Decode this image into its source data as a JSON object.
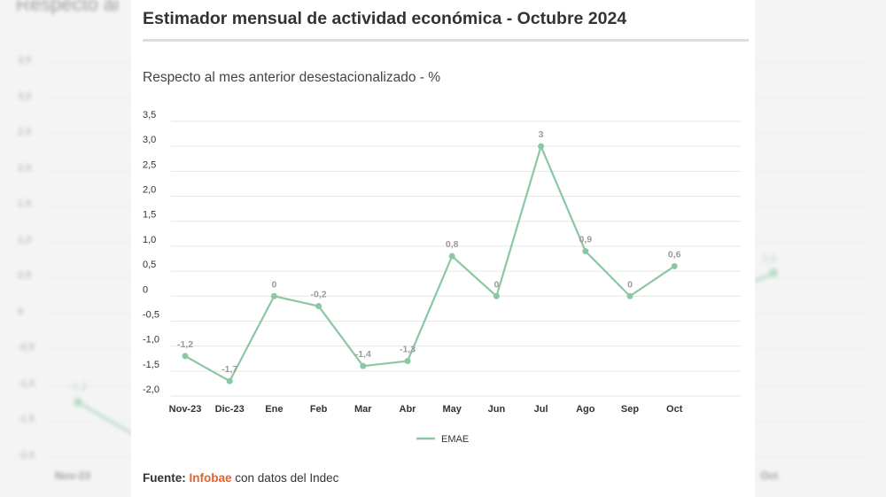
{
  "background": {
    "title_fragment": "Respecto al",
    "ticks": [
      "3,5",
      "3,0",
      "2,5",
      "2,0",
      "1,5",
      "1,0",
      "0,5",
      "0",
      "-0,5",
      "-1,0",
      "-1,5",
      "-2,0"
    ],
    "left_label": "-1,2",
    "right_label": "0,6",
    "left_cat": "Nov-23",
    "right_cat": "Oct"
  },
  "card": {
    "title": "Estimador mensual de actividad económica - Octubre 2024",
    "subtitle": "Respecto al mes anterior desestacionalizado - %",
    "footer_label": "Fuente:",
    "footer_source": "Infobae",
    "footer_rest": " con datos del Indec"
  },
  "colors": {
    "series": "#8cc7a4",
    "grid": "#e6e6e6",
    "tick_text": "#333333",
    "label_text": "#9b9b9b",
    "accent": "#e8612c"
  },
  "chart_data": {
    "type": "line",
    "title": "Estimador mensual de actividad económica - Octubre 2024",
    "subtitle": "Respecto al mes anterior desestacionalizado - %",
    "categories": [
      "Nov-23",
      "Dic-23",
      "Ene",
      "Feb",
      "Mar",
      "Abr",
      "May",
      "Jun",
      "Jul",
      "Ago",
      "Sep",
      "Oct"
    ],
    "series": [
      {
        "name": "EMAE",
        "values": [
          -1.2,
          -1.7,
          0,
          -0.2,
          -1.4,
          -1.3,
          0.8,
          0,
          3,
          0.9,
          0,
          0.6
        ],
        "labels": [
          "-1,2",
          "-1,7",
          "0",
          "-0,2",
          "-1,4",
          "-1,3",
          "0,8",
          "0",
          "3",
          "0,9",
          "0",
          "0,6"
        ]
      }
    ],
    "yticks": [
      3.5,
      3.0,
      2.5,
      2.0,
      1.5,
      1.0,
      0.5,
      0,
      -0.5,
      -1.0,
      -1.5,
      -2.0
    ],
    "ytick_labels": [
      "3,5",
      "3,0",
      "2,5",
      "2,0",
      "1,5",
      "1,0",
      "0,5",
      "0",
      "-0,5",
      "-1,0",
      "-1,5",
      "-2,0"
    ],
    "ylim": [
      -2.0,
      3.5
    ],
    "grid": true,
    "legend": "bottom-center"
  }
}
